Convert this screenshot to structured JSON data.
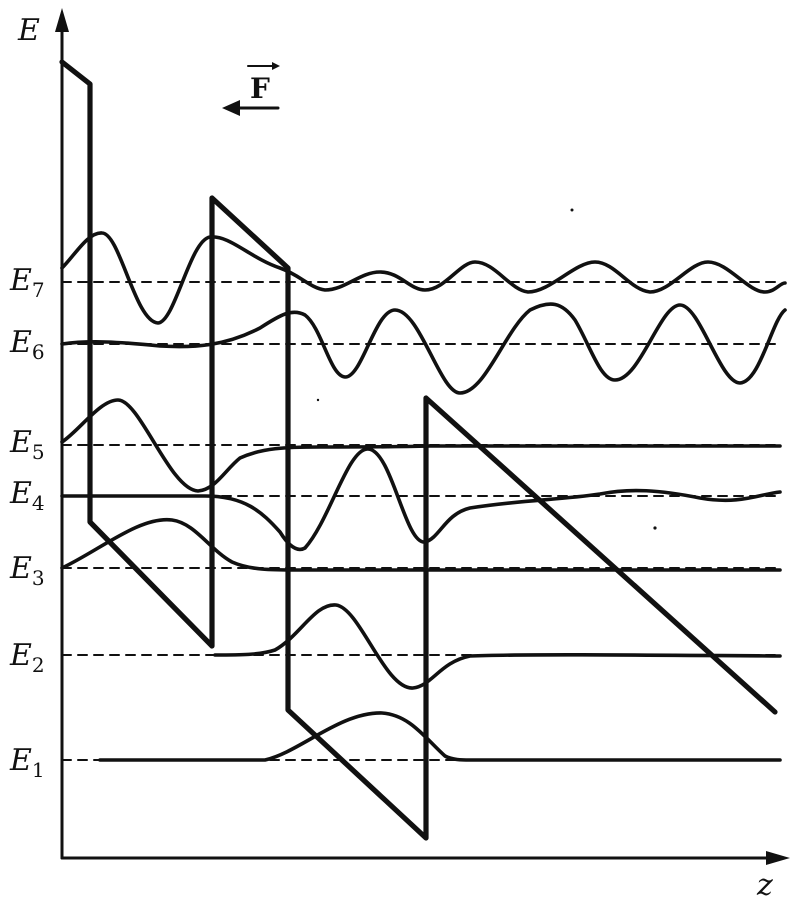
{
  "axes": {
    "y_label": "E",
    "x_label": "z"
  },
  "field": {
    "symbol": "F",
    "direction": "left"
  },
  "levels": [
    {
      "base": "E",
      "sub": "1"
    },
    {
      "base": "E",
      "sub": "2"
    },
    {
      "base": "E",
      "sub": "3"
    },
    {
      "base": "E",
      "sub": "4"
    },
    {
      "base": "E",
      "sub": "5"
    },
    {
      "base": "E",
      "sub": "6"
    },
    {
      "base": "E",
      "sub": "7"
    }
  ],
  "colors": {
    "ink": "#111111",
    "background": "#ffffff"
  }
}
